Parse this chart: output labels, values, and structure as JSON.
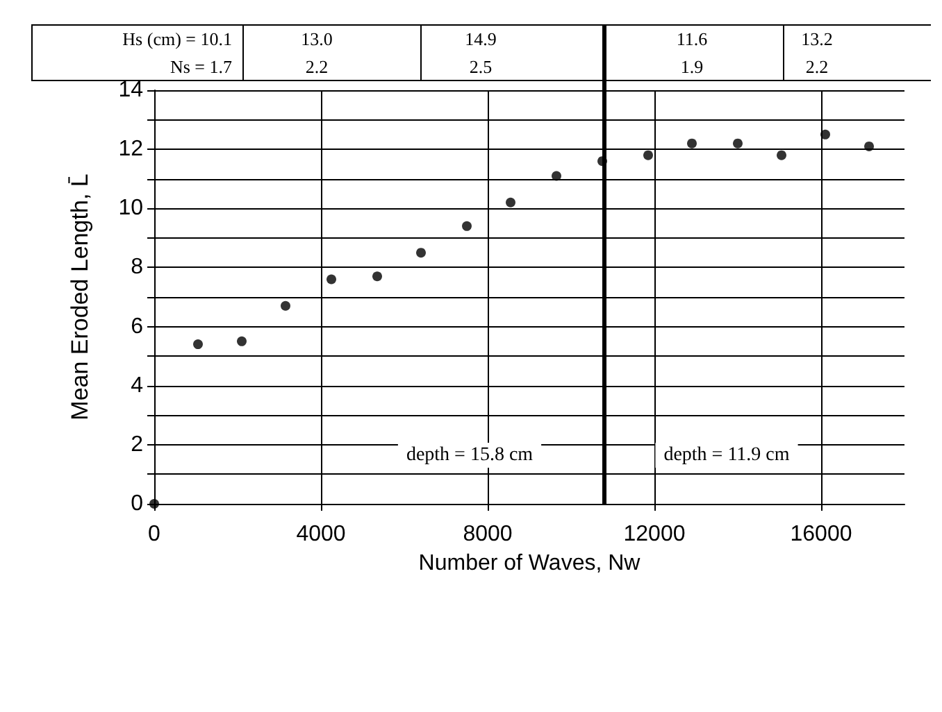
{
  "chart_data": {
    "type": "scatter",
    "xlabel": "Number of Waves, Nw",
    "ylabel": "Mean Eroded Length, L̄",
    "x": [
      0,
      1050,
      2100,
      3150,
      4250,
      5350,
      6400,
      7500,
      8550,
      9650,
      10750,
      11850,
      12900,
      14000,
      15050,
      16100,
      17150
    ],
    "series": [
      {
        "color": "#000000",
        "values": [
          0,
          5.4,
          5.5,
          6.7,
          7.6,
          7.7,
          8.5,
          9.4,
          10.2,
          11.1,
          11.6,
          11.8,
          12.2,
          12.2,
          11.8,
          12.5,
          12.1
        ]
      }
    ],
    "xlim": [
      0,
      18000
    ],
    "xticks": [
      0,
      4000,
      8000,
      12000,
      16000
    ],
    "ylim": [
      0,
      14
    ],
    "yticks": [
      0,
      {
        "value": 1,
        "label": null
      },
      2,
      {
        "value": 3,
        "label": null
      },
      4,
      {
        "value": 5,
        "label": null
      },
      6,
      {
        "value": 7,
        "label": null
      },
      8,
      {
        "value": 9,
        "label": null
      },
      10,
      {
        "value": 11,
        "label": null
      },
      12,
      {
        "value": 13,
        "label": null
      },
      14
    ],
    "grid": true,
    "marker": "circle",
    "ref_lines": [
      {
        "axis": "x",
        "value": 10800,
        "color": "#000000"
      }
    ],
    "annotations": [
      "Hs (cm) = 10.1\nNs = 1.7",
      "13.0\n2.2",
      "14.9\n2.5",
      "11.6\n1.9",
      "13.2\n2.2",
      "depth = 15.8 cm",
      "depth = 11.9 cm"
    ]
  }
}
